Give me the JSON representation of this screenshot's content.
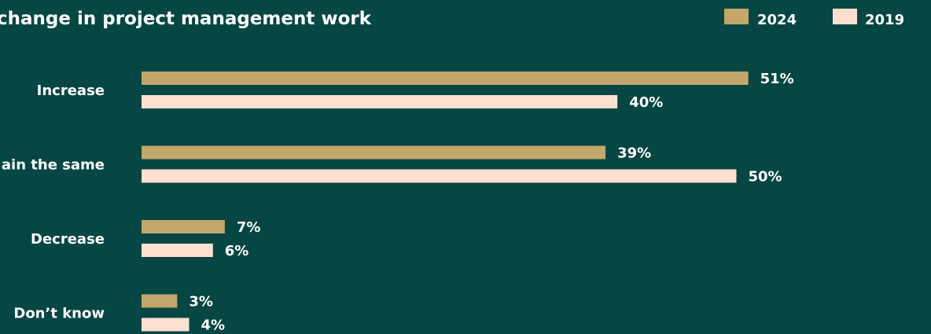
{
  "chart_data": {
    "type": "bar",
    "orientation": "horizontal",
    "title": "change in project management work",
    "categories": [
      "Increase",
      "ain the same",
      "Decrease",
      "Don’t know"
    ],
    "series": [
      {
        "name": "2024",
        "color": "#c2a66a",
        "values": [
          51,
          39,
          7,
          3
        ],
        "labels": [
          "51%",
          "39%",
          "7%",
          "3%"
        ]
      },
      {
        "name": "2019",
        "color": "#fde0d2",
        "values": [
          40,
          50,
          6,
          4
        ],
        "labels": [
          "40%",
          "50%",
          "6%",
          "4%"
        ]
      }
    ],
    "unit": "%",
    "legend_position": "top-right",
    "grid": false
  },
  "colors": {
    "background": "#064643",
    "text": "#ffffff"
  }
}
